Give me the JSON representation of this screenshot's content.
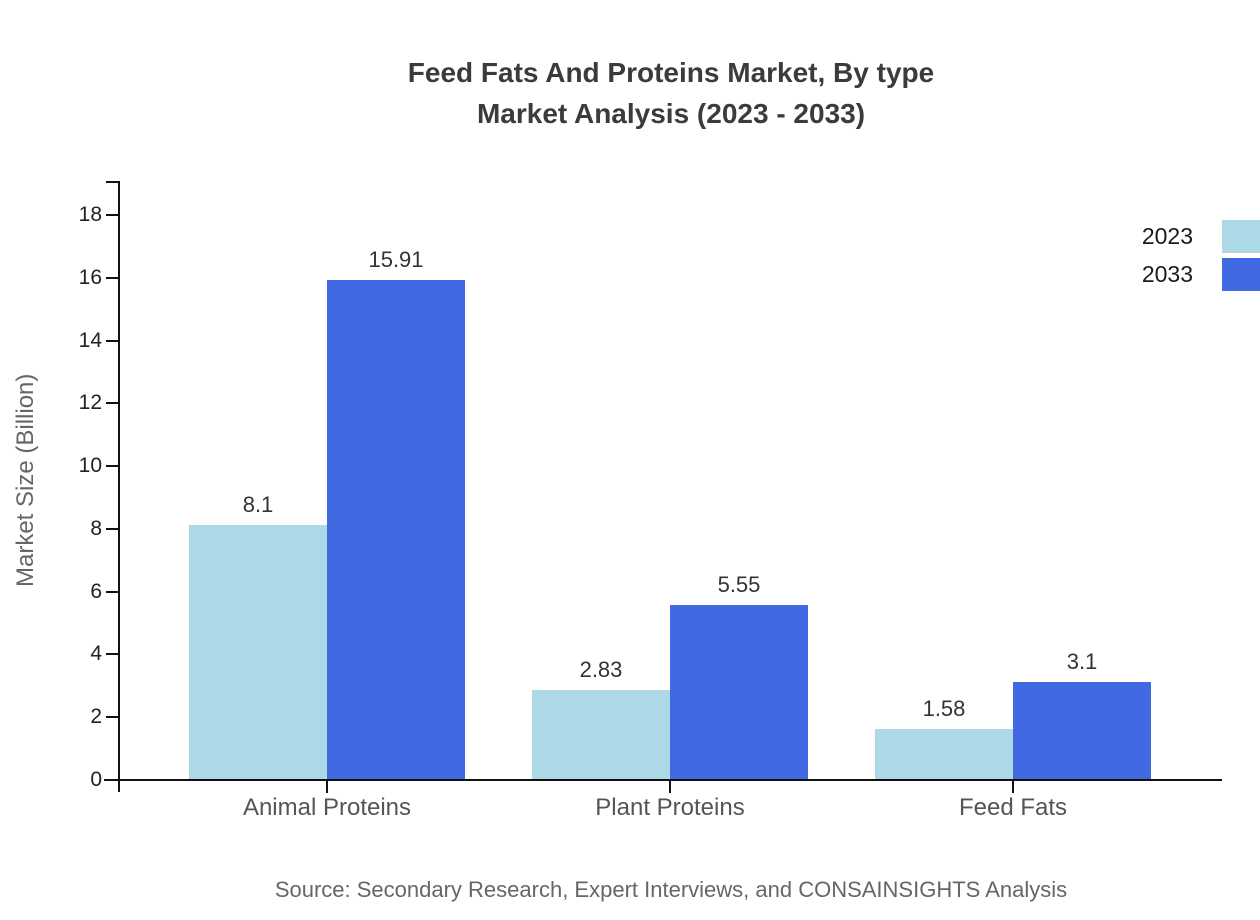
{
  "title": {
    "line1": "Feed Fats And Proteins Market, By type",
    "line2": "Market Analysis (2023 - 2033)"
  },
  "source": "Source: Secondary Research, Expert Interviews, and CONSAINSIGHTS Analysis",
  "chart_data": {
    "type": "bar",
    "categories": [
      "Animal Proteins",
      "Plant Proteins",
      "Feed Fats"
    ],
    "series": [
      {
        "name": "2023",
        "color": "#ADD8E6",
        "values": [
          8.1,
          2.83,
          1.58
        ]
      },
      {
        "name": "2033",
        "color": "#4169E1",
        "values": [
          15.91,
          5.55,
          3.1
        ]
      }
    ],
    "value_labels": [
      "8.1",
      "15.91",
      "2.83",
      "5.55",
      "1.58",
      "3.1"
    ],
    "title": "Feed Fats And Proteins Market, By type Market Analysis (2023 - 2033)",
    "xlabel": "",
    "ylabel": "Market Size (Billion)",
    "ylim": [
      0,
      18
    ],
    "yticks": [
      0,
      2,
      4,
      6,
      8,
      10,
      12,
      14,
      16,
      18
    ],
    "grid": false,
    "legend_position": "top-right",
    "axis_color": "#111111",
    "background_color": "#ffffff"
  }
}
